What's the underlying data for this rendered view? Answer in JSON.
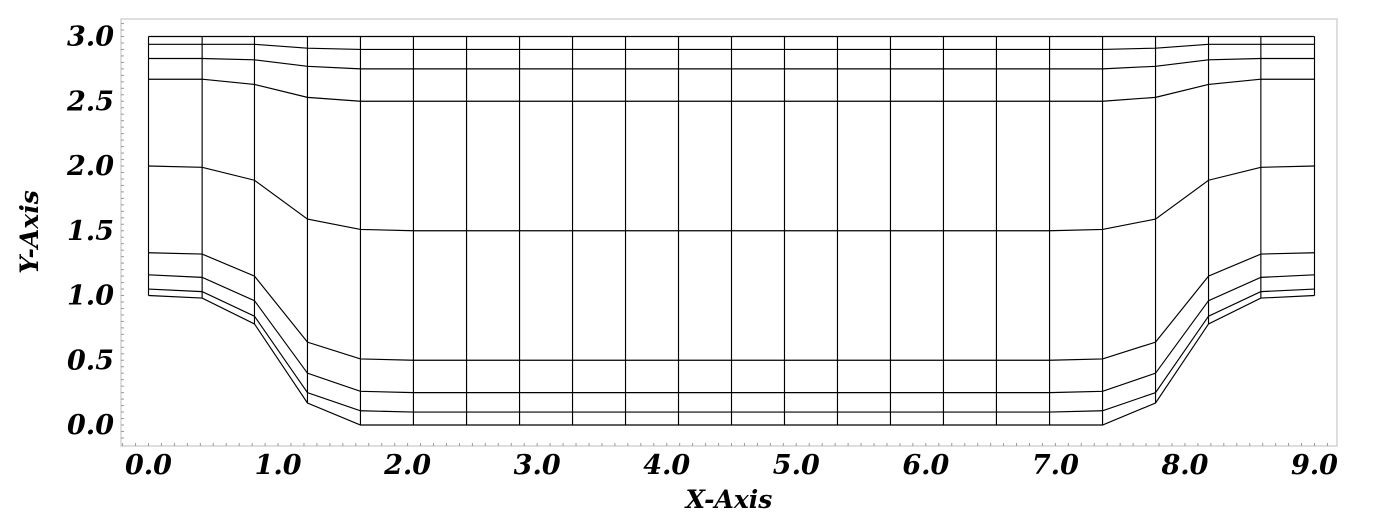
{
  "chart_data": {
    "type": "line",
    "title": "",
    "xlabel": "X-Axis",
    "ylabel": "Y-Axis",
    "xlim": [
      -0.2,
      9.2
    ],
    "ylim": [
      -0.1,
      3.15
    ],
    "x_ticks": [
      "0.0",
      "1.0",
      "2.0",
      "3.0",
      "4.0",
      "5.0",
      "6.0",
      "7.0",
      "8.0",
      "9.0"
    ],
    "y_ticks": [
      "0.0",
      "0.5",
      "1.0",
      "1.5",
      "2.0",
      "2.5",
      "3.0"
    ],
    "grid": false,
    "legend": "none",
    "x": [
      0.0,
      0.414,
      0.818,
      1.227,
      1.636,
      2.045,
      2.455,
      2.864,
      3.273,
      3.682,
      4.091,
      4.5,
      4.909,
      5.318,
      5.727,
      6.136,
      6.545,
      6.955,
      7.364,
      7.773,
      8.182,
      8.586,
      9.0
    ],
    "series": [
      {
        "values": [
          1.0,
          0.98,
          0.78,
          0.17,
          0.0,
          0.0,
          0.0,
          0.0,
          0.0,
          0.0,
          0.0,
          0.0,
          0.0,
          0.0,
          0.0,
          0.0,
          0.0,
          0.0,
          0.0,
          0.17,
          0.78,
          0.98,
          1.0
        ]
      },
      {
        "values": [
          1.05,
          1.03,
          0.84,
          0.25,
          0.11,
          0.1,
          0.1,
          0.1,
          0.1,
          0.1,
          0.1,
          0.1,
          0.1,
          0.1,
          0.1,
          0.1,
          0.1,
          0.1,
          0.11,
          0.25,
          0.84,
          1.03,
          1.05
        ]
      },
      {
        "values": [
          1.16,
          1.14,
          0.96,
          0.4,
          0.26,
          0.25,
          0.25,
          0.25,
          0.25,
          0.25,
          0.25,
          0.25,
          0.25,
          0.25,
          0.25,
          0.25,
          0.25,
          0.25,
          0.26,
          0.4,
          0.96,
          1.14,
          1.16
        ]
      },
      {
        "values": [
          1.33,
          1.32,
          1.15,
          0.64,
          0.51,
          0.5,
          0.5,
          0.5,
          0.5,
          0.5,
          0.5,
          0.5,
          0.5,
          0.5,
          0.5,
          0.5,
          0.5,
          0.5,
          0.51,
          0.64,
          1.15,
          1.32,
          1.33
        ]
      },
      {
        "values": [
          2.0,
          1.99,
          1.89,
          1.59,
          1.51,
          1.5,
          1.5,
          1.5,
          1.5,
          1.5,
          1.5,
          1.5,
          1.5,
          1.5,
          1.5,
          1.5,
          1.5,
          1.5,
          1.51,
          1.59,
          1.89,
          1.99,
          2.0
        ]
      },
      {
        "values": [
          2.67,
          2.67,
          2.63,
          2.53,
          2.5,
          2.5,
          2.5,
          2.5,
          2.5,
          2.5,
          2.5,
          2.5,
          2.5,
          2.5,
          2.5,
          2.5,
          2.5,
          2.5,
          2.5,
          2.53,
          2.63,
          2.67,
          2.67
        ]
      },
      {
        "values": [
          2.83,
          2.83,
          2.82,
          2.77,
          2.75,
          2.75,
          2.75,
          2.75,
          2.75,
          2.75,
          2.75,
          2.75,
          2.75,
          2.75,
          2.75,
          2.75,
          2.75,
          2.75,
          2.75,
          2.77,
          2.82,
          2.83,
          2.83
        ]
      },
      {
        "values": [
          2.94,
          2.94,
          2.94,
          2.91,
          2.9,
          2.9,
          2.9,
          2.9,
          2.9,
          2.9,
          2.9,
          2.9,
          2.9,
          2.9,
          2.9,
          2.9,
          2.9,
          2.9,
          2.9,
          2.91,
          2.94,
          2.94,
          2.94
        ]
      },
      {
        "values": [
          3.0,
          3.0,
          3.0,
          3.0,
          3.0,
          3.0,
          3.0,
          3.0,
          3.0,
          3.0,
          3.0,
          3.0,
          3.0,
          3.0,
          3.0,
          3.0,
          3.0,
          3.0,
          3.0,
          3.0,
          3.0,
          3.0,
          3.0
        ]
      }
    ]
  }
}
